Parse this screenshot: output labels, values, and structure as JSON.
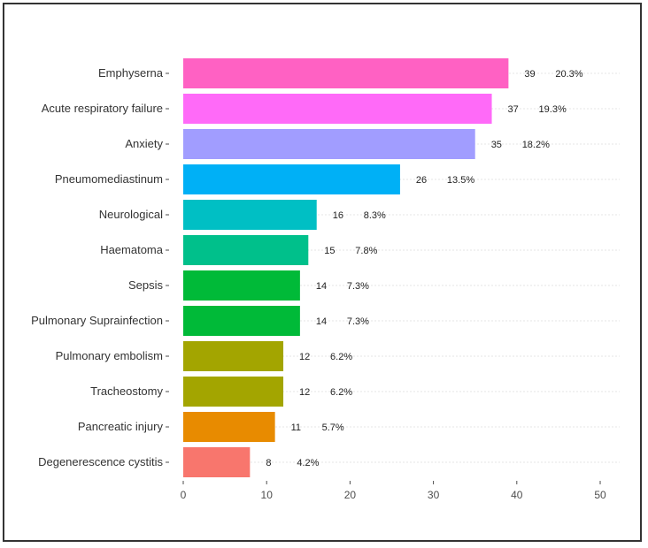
{
  "chart_data": {
    "type": "bar",
    "orientation": "horizontal",
    "categories": [
      "Emphyserna",
      "Acute respiratory failure",
      "Anxiety",
      "Pneumomediastinum",
      "Neurological",
      "Haematoma",
      "Sepsis",
      "Pulmonary Suprainfection",
      "Pulmonary embolism",
      "Tracheostomy",
      "Pancreatic injury",
      "Degenerescence cystitis"
    ],
    "values": [
      39,
      37,
      35,
      26,
      16,
      15,
      14,
      14,
      12,
      12,
      11,
      8
    ],
    "percent_labels": [
      "20.3%",
      "19.3%",
      "18.2%",
      "13.5%",
      "8.3%",
      "7.8%",
      "7.3%",
      "7.3%",
      "6.2%",
      "6.2%",
      "5.7%",
      "4.2%"
    ],
    "colors": [
      "#FF61C3",
      "#FF6AF8",
      "#A19DFF",
      "#00B0F6",
      "#00BFC4",
      "#00C08B",
      "#00BA38",
      "#00BA38",
      "#A3A500",
      "#A3A500",
      "#E88B00",
      "#F8766D"
    ],
    "x_ticks": [
      0,
      10,
      20,
      30,
      40,
      50
    ],
    "xlim": [
      0,
      52
    ],
    "title": "",
    "xlabel": "",
    "ylabel": "",
    "grid": true,
    "legend": "none"
  }
}
